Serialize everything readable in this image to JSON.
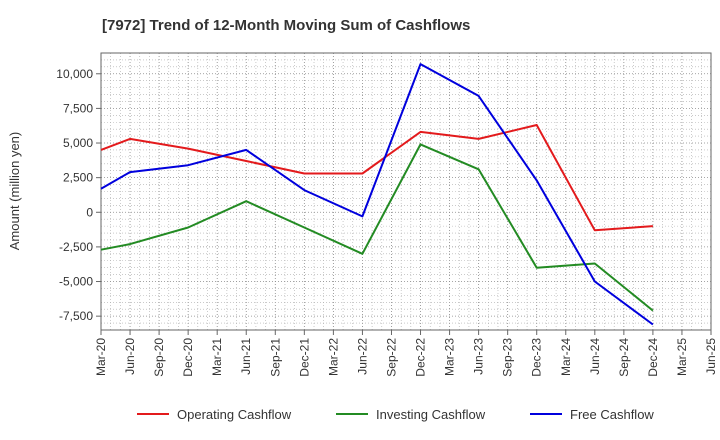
{
  "chart_data": {
    "type": "line",
    "title": "[7972]  Trend of 12-Month Moving Sum of Cashflows",
    "xlabel": "",
    "ylabel": "Amount (million yen)",
    "ylim": [
      -8500,
      11500
    ],
    "yticks": [
      10000,
      7500,
      5000,
      2500,
      0,
      -2500,
      -5000,
      -7500
    ],
    "ytick_labels": [
      "10,000",
      "7,500",
      "5,000",
      "2,500",
      "0",
      "-2,500",
      "-5,000",
      "-7,500"
    ],
    "categories": [
      "Mar-20",
      "Jun-20",
      "Sep-20",
      "Dec-20",
      "Mar-21",
      "Jun-21",
      "Sep-21",
      "Dec-21",
      "Mar-22",
      "Jun-22",
      "Sep-22",
      "Dec-22",
      "Mar-23",
      "Jun-23",
      "Sep-23",
      "Dec-23",
      "Mar-24",
      "Jun-24",
      "Sep-24",
      "Dec-24",
      "Mar-25",
      "Jun-25"
    ],
    "grid": true,
    "legend_position": "bottom",
    "series": [
      {
        "name": "Operating Cashflow",
        "color": "#e31a1c",
        "x": [
          "Mar-20",
          "Jun-20",
          "Dec-20",
          "Jun-21",
          "Dec-21",
          "Jun-22",
          "Dec-22",
          "Jun-23",
          "Dec-23",
          "Jun-24",
          "Dec-24"
        ],
        "values": [
          4500,
          5300,
          4600,
          3700,
          2800,
          2800,
          5800,
          5300,
          6300,
          -1300,
          -1000
        ]
      },
      {
        "name": "Investing Cashflow",
        "color": "#238b23",
        "x": [
          "Mar-20",
          "Jun-20",
          "Dec-20",
          "Jun-21",
          "Dec-21",
          "Jun-22",
          "Dec-22",
          "Jun-23",
          "Dec-23",
          "Jun-24",
          "Dec-24"
        ],
        "values": [
          -2700,
          -2300,
          -1100,
          800,
          -1100,
          -3000,
          4900,
          3100,
          -4000,
          -3700,
          -7100
        ]
      },
      {
        "name": "Free Cashflow",
        "color": "#0000dd",
        "x": [
          "Mar-20",
          "Jun-20",
          "Dec-20",
          "Jun-21",
          "Dec-21",
          "Jun-22",
          "Dec-22",
          "Jun-23",
          "Dec-23",
          "Jun-24",
          "Dec-24"
        ],
        "values": [
          1700,
          2900,
          3400,
          4500,
          1600,
          -300,
          10700,
          8400,
          2300,
          -5000,
          -8100
        ]
      }
    ]
  }
}
